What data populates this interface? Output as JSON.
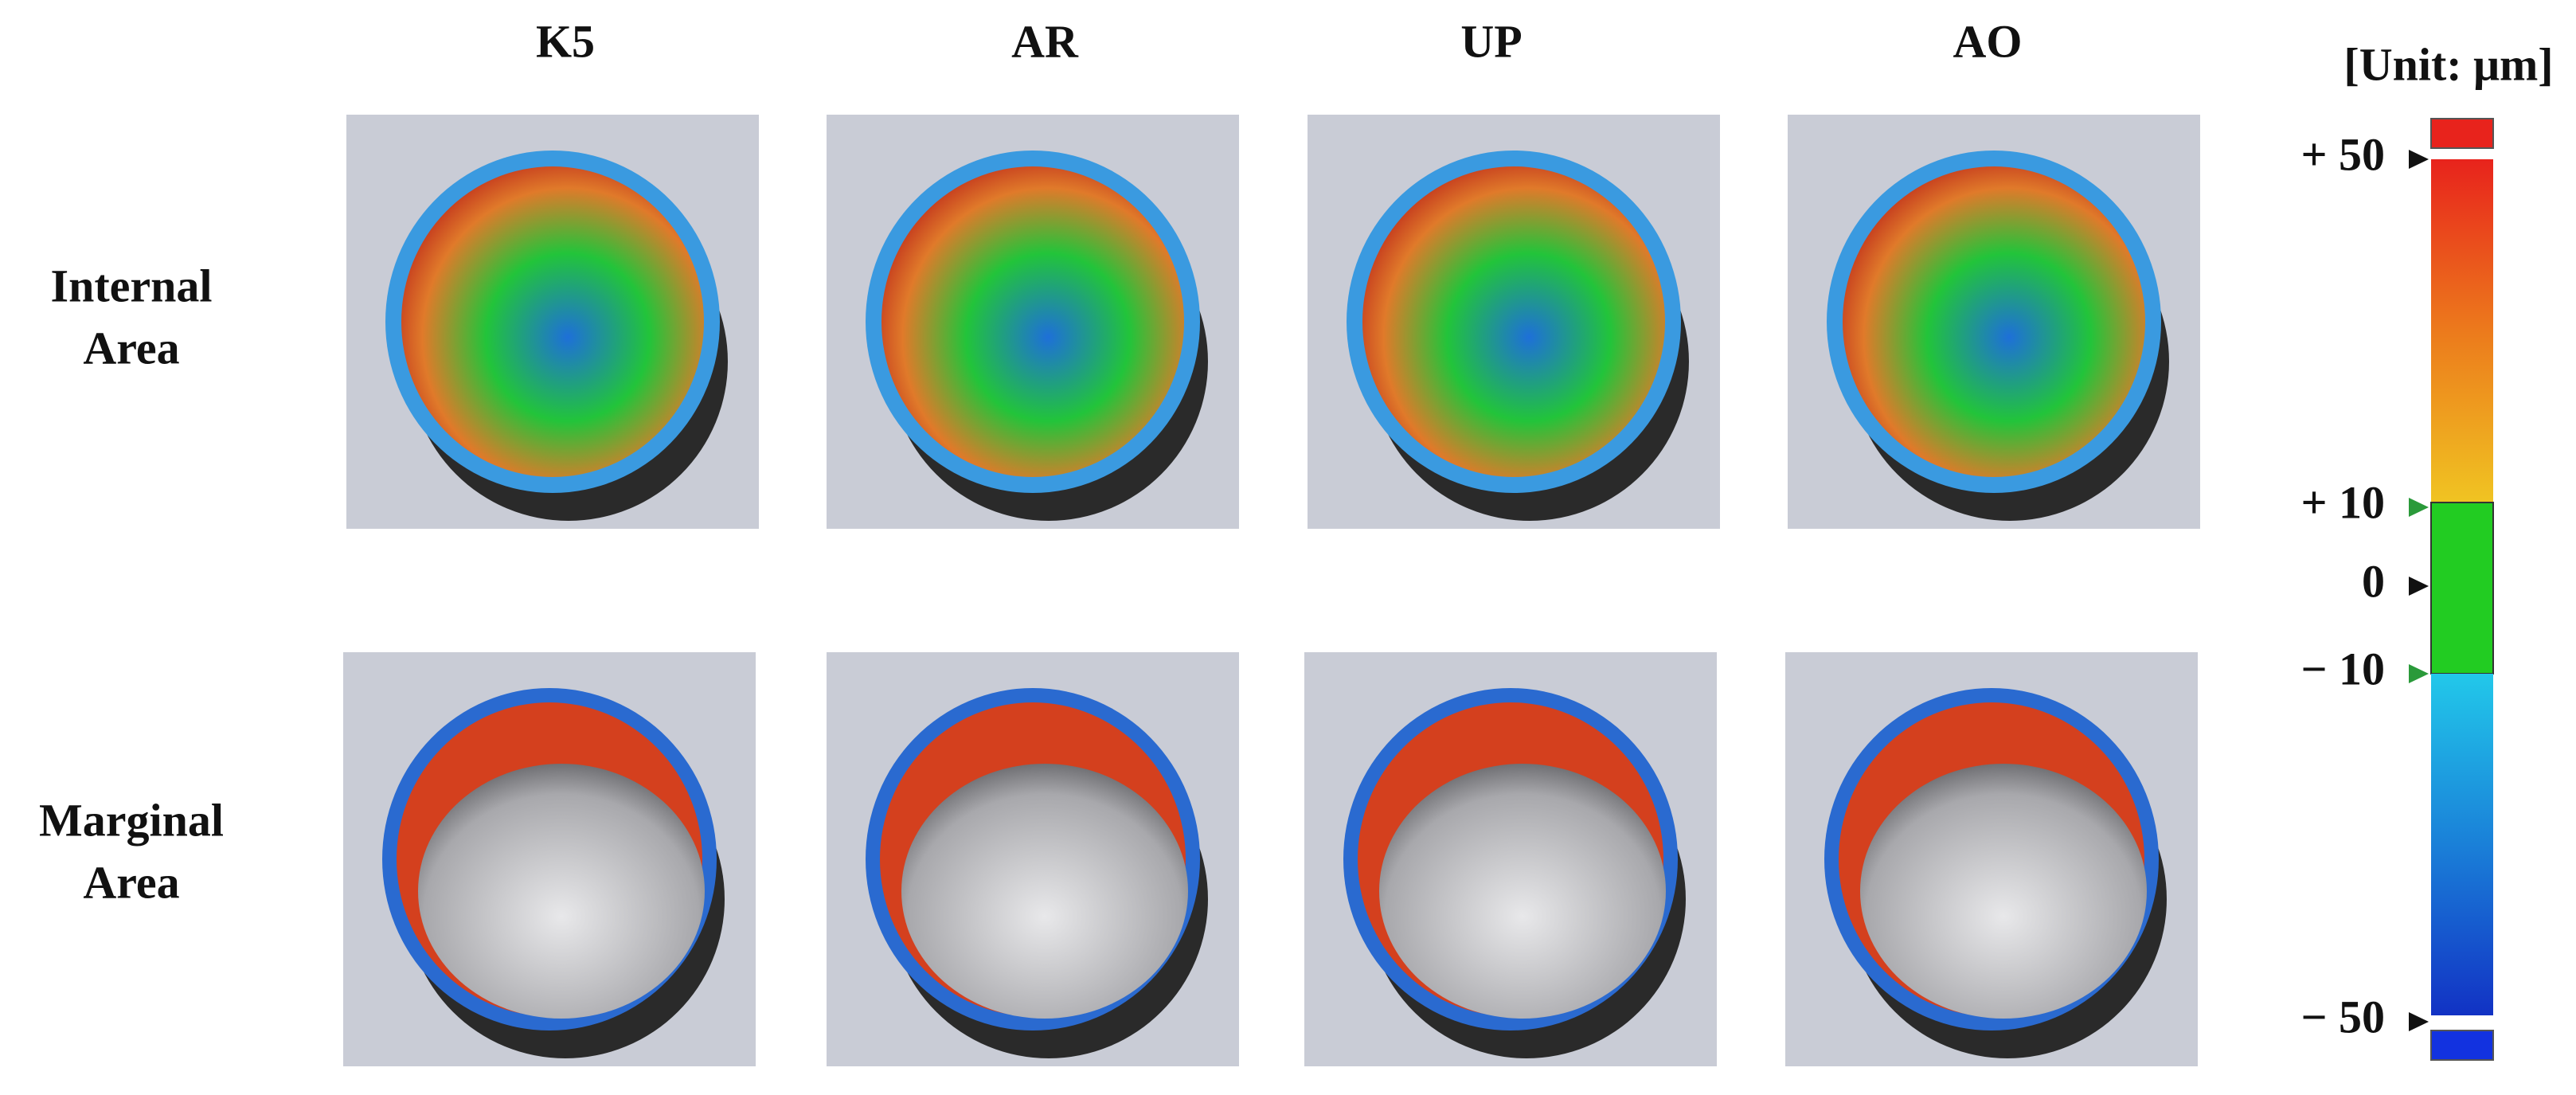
{
  "columns": [
    "K5",
    "AR",
    "UP",
    "AO"
  ],
  "rows": [
    [
      "Internal",
      "Area"
    ],
    [
      "Marginal",
      "Area"
    ]
  ],
  "scale": {
    "title": "[Unit: μm]",
    "labels": [
      "+ 50",
      "+ 10",
      "0",
      "− 10",
      "− 50"
    ]
  }
}
